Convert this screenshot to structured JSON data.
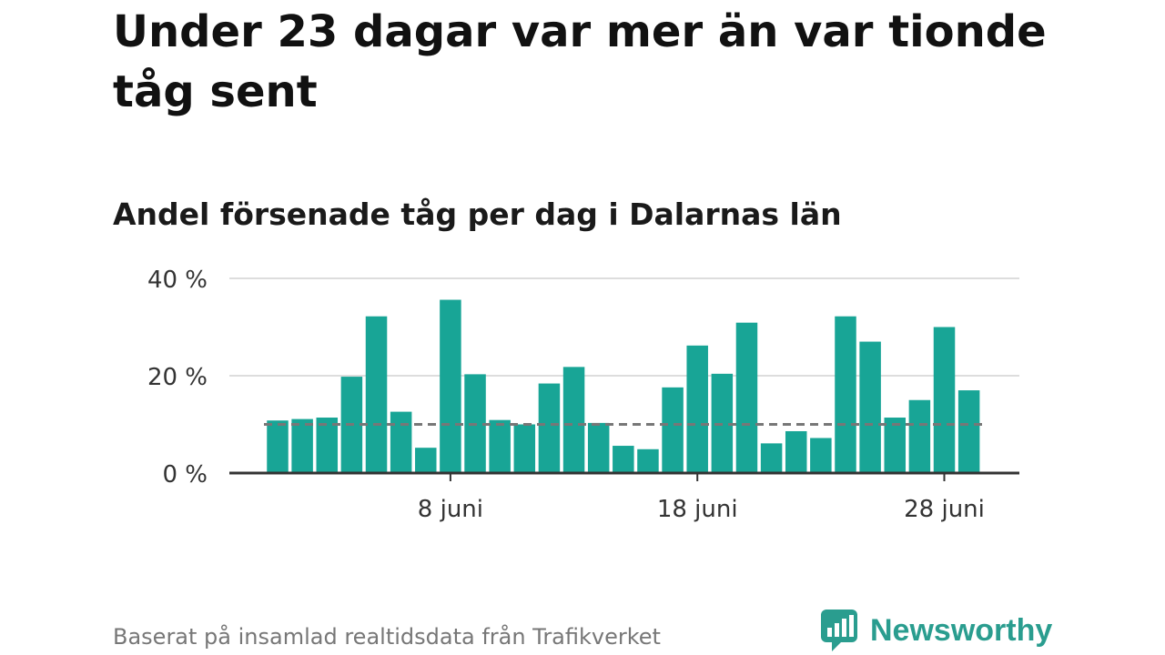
{
  "title": "Under 23 dagar var mer än var tionde tåg sent",
  "subtitle": "Andel försenade tåg per dag i Dalarnas län",
  "source": "Baserat på insamlad realtidsdata från Trafikverket",
  "brand": {
    "name": "Newsworthy",
    "icon": "newsworthy-logo-icon",
    "color": "#2a9d8f"
  },
  "colors": {
    "bar": "#18a596",
    "reference_line": "#777777",
    "grid": "#dddddd",
    "axis": "#333333"
  },
  "chart_data": {
    "type": "bar",
    "x": [
      "1 juni",
      "2 juni",
      "3 juni",
      "4 juni",
      "5 juni",
      "6 juni",
      "7 juni",
      "8 juni",
      "9 juni",
      "10 juni",
      "11 juni",
      "12 juni",
      "13 juni",
      "14 juni",
      "15 juni",
      "16 juni",
      "17 juni",
      "18 juni",
      "19 juni",
      "20 juni",
      "21 juni",
      "22 juni",
      "23 juni",
      "24 juni",
      "25 juni",
      "26 juni",
      "27 juni",
      "28 juni",
      "29 juni"
    ],
    "values": [
      10.8,
      11.1,
      11.4,
      19.8,
      32.2,
      12.6,
      5.2,
      35.6,
      20.3,
      10.9,
      10.0,
      18.4,
      21.8,
      10.3,
      5.6,
      4.9,
      17.6,
      26.2,
      20.4,
      30.9,
      6.1,
      8.6,
      7.2,
      32.2,
      27.0,
      11.4,
      15.0,
      30.0,
      17.0
    ],
    "reference_line": 10,
    "xticks": [
      "8 juni",
      "18 juni",
      "28 juni"
    ],
    "yticks": [
      "0 %",
      "20 %",
      "40 %"
    ],
    "ytick_values": [
      0,
      20,
      40
    ],
    "ylim": [
      0,
      40
    ],
    "ylabel": "",
    "xlabel": "",
    "grid": true
  }
}
